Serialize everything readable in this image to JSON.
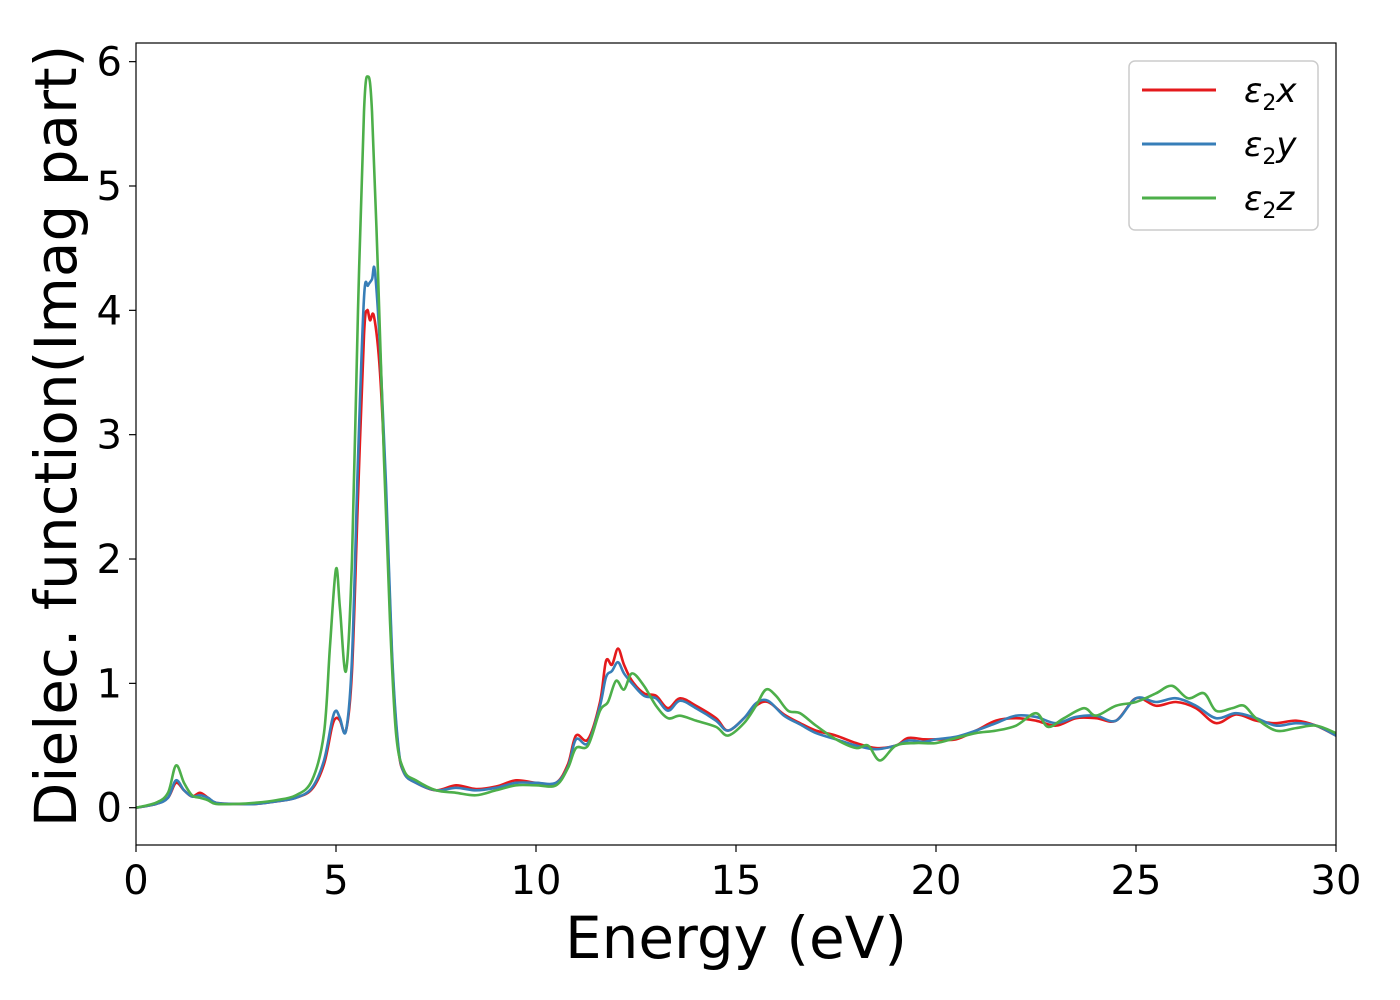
{
  "chart_data": {
    "type": "line",
    "xlabel": "Energy (eV)",
    "ylabel": "Dielec. function(Imag part)",
    "xlim": [
      0,
      30
    ],
    "ylim": [
      -0.3,
      6.15
    ],
    "xticks": [
      0,
      5,
      10,
      15,
      20,
      25,
      30
    ],
    "yticks": [
      0,
      1,
      2,
      3,
      4,
      5,
      6
    ],
    "grid": false,
    "legend_position": "top-right",
    "series": [
      {
        "name": "ε2x",
        "legend": {
          "base": "ε",
          "sub": "2",
          "axis": "x"
        },
        "color": "#e41a1c",
        "points": [
          [
            0,
            0
          ],
          [
            0.5,
            0.03
          ],
          [
            0.8,
            0.08
          ],
          [
            1.0,
            0.2
          ],
          [
            1.2,
            0.14
          ],
          [
            1.4,
            0.09
          ],
          [
            1.6,
            0.12
          ],
          [
            1.8,
            0.08
          ],
          [
            2.0,
            0.04
          ],
          [
            2.5,
            0.03
          ],
          [
            3.0,
            0.03
          ],
          [
            3.5,
            0.05
          ],
          [
            4.0,
            0.08
          ],
          [
            4.4,
            0.15
          ],
          [
            4.7,
            0.35
          ],
          [
            4.9,
            0.65
          ],
          [
            5.0,
            0.72
          ],
          [
            5.1,
            0.7
          ],
          [
            5.25,
            0.62
          ],
          [
            5.4,
            1.1
          ],
          [
            5.55,
            2.5
          ],
          [
            5.7,
            3.8
          ],
          [
            5.78,
            4.0
          ],
          [
            5.85,
            3.92
          ],
          [
            5.95,
            3.95
          ],
          [
            6.1,
            3.5
          ],
          [
            6.25,
            2.5
          ],
          [
            6.4,
            1.2
          ],
          [
            6.55,
            0.5
          ],
          [
            6.7,
            0.28
          ],
          [
            7.0,
            0.2
          ],
          [
            7.5,
            0.14
          ],
          [
            8.0,
            0.18
          ],
          [
            8.5,
            0.15
          ],
          [
            9.0,
            0.17
          ],
          [
            9.5,
            0.22
          ],
          [
            10.0,
            0.2
          ],
          [
            10.5,
            0.2
          ],
          [
            10.8,
            0.35
          ],
          [
            11.0,
            0.58
          ],
          [
            11.3,
            0.55
          ],
          [
            11.6,
            0.85
          ],
          [
            11.75,
            1.18
          ],
          [
            11.9,
            1.15
          ],
          [
            12.05,
            1.28
          ],
          [
            12.2,
            1.15
          ],
          [
            12.4,
            1.02
          ],
          [
            12.7,
            0.92
          ],
          [
            13.0,
            0.9
          ],
          [
            13.3,
            0.8
          ],
          [
            13.6,
            0.88
          ],
          [
            14.0,
            0.82
          ],
          [
            14.5,
            0.72
          ],
          [
            14.8,
            0.62
          ],
          [
            15.2,
            0.72
          ],
          [
            15.5,
            0.82
          ],
          [
            15.8,
            0.85
          ],
          [
            16.2,
            0.75
          ],
          [
            16.6,
            0.68
          ],
          [
            17.0,
            0.62
          ],
          [
            17.5,
            0.58
          ],
          [
            18.0,
            0.52
          ],
          [
            18.5,
            0.48
          ],
          [
            19.0,
            0.5
          ],
          [
            19.3,
            0.56
          ],
          [
            19.7,
            0.55
          ],
          [
            20.0,
            0.55
          ],
          [
            20.5,
            0.55
          ],
          [
            21.0,
            0.62
          ],
          [
            21.5,
            0.7
          ],
          [
            22.0,
            0.72
          ],
          [
            22.5,
            0.7
          ],
          [
            23.0,
            0.66
          ],
          [
            23.5,
            0.72
          ],
          [
            24.0,
            0.72
          ],
          [
            24.5,
            0.7
          ],
          [
            25.0,
            0.88
          ],
          [
            25.5,
            0.82
          ],
          [
            26.0,
            0.85
          ],
          [
            26.5,
            0.8
          ],
          [
            27.0,
            0.68
          ],
          [
            27.5,
            0.75
          ],
          [
            28.0,
            0.7
          ],
          [
            28.5,
            0.68
          ],
          [
            29.0,
            0.7
          ],
          [
            29.5,
            0.66
          ],
          [
            30.0,
            0.58
          ]
        ]
      },
      {
        "name": "ε2y",
        "legend": {
          "base": "ε",
          "sub": "2",
          "axis": "y"
        },
        "color": "#377eb8",
        "points": [
          [
            0,
            0
          ],
          [
            0.5,
            0.03
          ],
          [
            0.8,
            0.08
          ],
          [
            1.0,
            0.22
          ],
          [
            1.2,
            0.14
          ],
          [
            1.4,
            0.09
          ],
          [
            1.6,
            0.1
          ],
          [
            1.8,
            0.08
          ],
          [
            2.0,
            0.04
          ],
          [
            2.5,
            0.03
          ],
          [
            3.0,
            0.03
          ],
          [
            3.5,
            0.05
          ],
          [
            4.0,
            0.08
          ],
          [
            4.4,
            0.16
          ],
          [
            4.7,
            0.38
          ],
          [
            4.9,
            0.7
          ],
          [
            5.0,
            0.78
          ],
          [
            5.1,
            0.72
          ],
          [
            5.25,
            0.62
          ],
          [
            5.4,
            1.2
          ],
          [
            5.55,
            2.8
          ],
          [
            5.7,
            4.1
          ],
          [
            5.8,
            4.2
          ],
          [
            5.9,
            4.25
          ],
          [
            5.97,
            4.32
          ],
          [
            6.1,
            3.7
          ],
          [
            6.25,
            2.6
          ],
          [
            6.4,
            1.25
          ],
          [
            6.55,
            0.52
          ],
          [
            6.7,
            0.28
          ],
          [
            7.0,
            0.2
          ],
          [
            7.5,
            0.14
          ],
          [
            8.0,
            0.16
          ],
          [
            8.5,
            0.14
          ],
          [
            9.0,
            0.16
          ],
          [
            9.5,
            0.2
          ],
          [
            10.0,
            0.2
          ],
          [
            10.5,
            0.2
          ],
          [
            10.8,
            0.33
          ],
          [
            11.0,
            0.55
          ],
          [
            11.3,
            0.52
          ],
          [
            11.6,
            0.82
          ],
          [
            11.75,
            1.05
          ],
          [
            11.9,
            1.1
          ],
          [
            12.05,
            1.17
          ],
          [
            12.2,
            1.08
          ],
          [
            12.4,
            1.0
          ],
          [
            12.7,
            0.9
          ],
          [
            13.0,
            0.88
          ],
          [
            13.3,
            0.78
          ],
          [
            13.6,
            0.86
          ],
          [
            14.0,
            0.8
          ],
          [
            14.5,
            0.7
          ],
          [
            14.8,
            0.62
          ],
          [
            15.2,
            0.72
          ],
          [
            15.5,
            0.84
          ],
          [
            15.8,
            0.86
          ],
          [
            16.2,
            0.74
          ],
          [
            16.6,
            0.67
          ],
          [
            17.0,
            0.6
          ],
          [
            17.5,
            0.55
          ],
          [
            18.0,
            0.5
          ],
          [
            18.5,
            0.47
          ],
          [
            19.0,
            0.5
          ],
          [
            19.3,
            0.54
          ],
          [
            19.7,
            0.53
          ],
          [
            20.0,
            0.55
          ],
          [
            20.5,
            0.57
          ],
          [
            21.0,
            0.62
          ],
          [
            21.5,
            0.68
          ],
          [
            22.0,
            0.74
          ],
          [
            22.5,
            0.73
          ],
          [
            23.0,
            0.68
          ],
          [
            23.5,
            0.73
          ],
          [
            24.0,
            0.74
          ],
          [
            24.5,
            0.7
          ],
          [
            25.0,
            0.88
          ],
          [
            25.5,
            0.85
          ],
          [
            26.0,
            0.88
          ],
          [
            26.5,
            0.82
          ],
          [
            27.0,
            0.72
          ],
          [
            27.5,
            0.76
          ],
          [
            28.0,
            0.72
          ],
          [
            28.5,
            0.66
          ],
          [
            29.0,
            0.68
          ],
          [
            29.5,
            0.66
          ],
          [
            30.0,
            0.58
          ]
        ]
      },
      {
        "name": "ε2z",
        "legend": {
          "base": "ε",
          "sub": "2",
          "axis": "z"
        },
        "color": "#4daf4a",
        "points": [
          [
            0,
            0
          ],
          [
            0.5,
            0.04
          ],
          [
            0.8,
            0.12
          ],
          [
            1.0,
            0.34
          ],
          [
            1.2,
            0.2
          ],
          [
            1.4,
            0.1
          ],
          [
            1.6,
            0.08
          ],
          [
            1.8,
            0.06
          ],
          [
            2.0,
            0.03
          ],
          [
            2.5,
            0.03
          ],
          [
            3.0,
            0.04
          ],
          [
            3.5,
            0.06
          ],
          [
            4.0,
            0.1
          ],
          [
            4.4,
            0.22
          ],
          [
            4.7,
            0.6
          ],
          [
            4.85,
            1.3
          ],
          [
            5.0,
            1.92
          ],
          [
            5.1,
            1.6
          ],
          [
            5.25,
            1.1
          ],
          [
            5.4,
            2.0
          ],
          [
            5.55,
            4.0
          ],
          [
            5.7,
            5.6
          ],
          [
            5.8,
            5.88
          ],
          [
            5.9,
            5.6
          ],
          [
            6.05,
            4.3
          ],
          [
            6.2,
            2.8
          ],
          [
            6.35,
            1.5
          ],
          [
            6.5,
            0.6
          ],
          [
            6.7,
            0.3
          ],
          [
            7.0,
            0.22
          ],
          [
            7.5,
            0.14
          ],
          [
            8.0,
            0.12
          ],
          [
            8.5,
            0.1
          ],
          [
            9.0,
            0.14
          ],
          [
            9.5,
            0.18
          ],
          [
            10.0,
            0.18
          ],
          [
            10.5,
            0.18
          ],
          [
            10.8,
            0.32
          ],
          [
            11.0,
            0.48
          ],
          [
            11.3,
            0.5
          ],
          [
            11.6,
            0.78
          ],
          [
            11.8,
            0.85
          ],
          [
            12.0,
            1.02
          ],
          [
            12.2,
            0.95
          ],
          [
            12.4,
            1.08
          ],
          [
            12.7,
            0.98
          ],
          [
            13.0,
            0.82
          ],
          [
            13.3,
            0.72
          ],
          [
            13.6,
            0.74
          ],
          [
            14.0,
            0.7
          ],
          [
            14.5,
            0.65
          ],
          [
            14.8,
            0.58
          ],
          [
            15.2,
            0.68
          ],
          [
            15.5,
            0.82
          ],
          [
            15.75,
            0.95
          ],
          [
            16.0,
            0.9
          ],
          [
            16.3,
            0.78
          ],
          [
            16.6,
            0.76
          ],
          [
            17.0,
            0.66
          ],
          [
            17.5,
            0.55
          ],
          [
            18.0,
            0.48
          ],
          [
            18.3,
            0.5
          ],
          [
            18.6,
            0.38
          ],
          [
            19.0,
            0.5
          ],
          [
            19.5,
            0.52
          ],
          [
            20.0,
            0.52
          ],
          [
            20.5,
            0.56
          ],
          [
            21.0,
            0.6
          ],
          [
            21.5,
            0.62
          ],
          [
            22.0,
            0.66
          ],
          [
            22.5,
            0.76
          ],
          [
            22.8,
            0.65
          ],
          [
            23.2,
            0.72
          ],
          [
            23.7,
            0.8
          ],
          [
            24.0,
            0.74
          ],
          [
            24.5,
            0.82
          ],
          [
            25.0,
            0.85
          ],
          [
            25.5,
            0.92
          ],
          [
            25.9,
            0.98
          ],
          [
            26.3,
            0.88
          ],
          [
            26.7,
            0.92
          ],
          [
            27.0,
            0.78
          ],
          [
            27.4,
            0.8
          ],
          [
            27.7,
            0.82
          ],
          [
            28.0,
            0.72
          ],
          [
            28.5,
            0.62
          ],
          [
            29.0,
            0.64
          ],
          [
            29.5,
            0.66
          ],
          [
            30.0,
            0.6
          ]
        ]
      }
    ]
  }
}
